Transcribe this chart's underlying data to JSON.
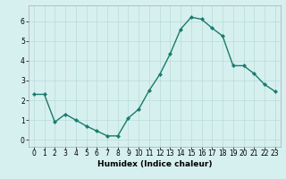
{
  "x": [
    0,
    1,
    2,
    3,
    4,
    5,
    6,
    7,
    8,
    9,
    10,
    11,
    12,
    13,
    14,
    15,
    16,
    17,
    18,
    19,
    20,
    21,
    22,
    23
  ],
  "y": [
    2.3,
    2.3,
    0.9,
    1.3,
    1.0,
    0.7,
    0.45,
    0.2,
    0.2,
    1.1,
    1.55,
    2.5,
    3.3,
    4.35,
    5.6,
    6.2,
    6.1,
    5.65,
    5.25,
    3.75,
    3.75,
    3.35,
    2.8,
    2.45
  ],
  "line_color": "#1a7a6e",
  "marker": "D",
  "marker_size": 2.2,
  "bg_color": "#d6f0ef",
  "grid_color": "#b8dbd9",
  "xlabel": "Humidex (Indice chaleur)",
  "xlim": [
    -0.5,
    23.5
  ],
  "ylim": [
    -0.35,
    6.8
  ],
  "yticks": [
    0,
    1,
    2,
    3,
    4,
    5,
    6
  ],
  "xticks": [
    0,
    1,
    2,
    3,
    4,
    5,
    6,
    7,
    8,
    9,
    10,
    11,
    12,
    13,
    14,
    15,
    16,
    17,
    18,
    19,
    20,
    21,
    22,
    23
  ],
  "tick_label_size": 5.5,
  "xlabel_size": 6.5,
  "linewidth": 1.0
}
